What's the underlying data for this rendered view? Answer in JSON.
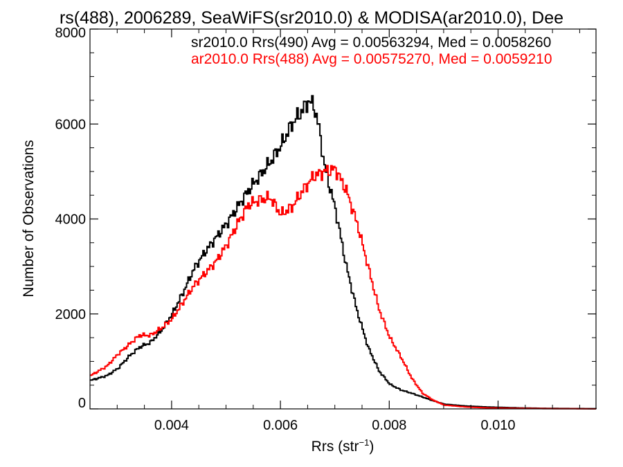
{
  "chart_data": {
    "type": "line",
    "title": "rs(488), 2006289, SeaWiFS(sr2010.0) & MODISA(ar2010.0), Dee",
    "xlabel": "Rrs (str",
    "xlabel_sup": "−1",
    "xlabel_end": ")",
    "ylabel": "Number of Observations",
    "xlim": [
      0.0025,
      0.0118
    ],
    "ylim": [
      0,
      8000
    ],
    "x_ticks": [
      0.004,
      0.006,
      0.008,
      0.01
    ],
    "x_tick_labels": [
      "0.004",
      "0.006",
      "0.008",
      "0.010"
    ],
    "y_ticks": [
      0,
      2000,
      4000,
      6000,
      8000
    ],
    "y_tick_labels": [
      "0",
      "2000",
      "4000",
      "6000",
      "8000"
    ],
    "legend_placement": "top-right",
    "grid": false,
    "series": [
      {
        "name": "sr2010.0 Rrs(490) Avg = 0.00563294, Med = 0.0058260",
        "color": "#000000",
        "points": [
          [
            0.0025,
            600
          ],
          [
            0.0028,
            700
          ],
          [
            0.003,
            850
          ],
          [
            0.0032,
            1100
          ],
          [
            0.0034,
            1300
          ],
          [
            0.0036,
            1400
          ],
          [
            0.0038,
            1650
          ],
          [
            0.004,
            2000
          ],
          [
            0.0042,
            2450
          ],
          [
            0.0044,
            2950
          ],
          [
            0.0046,
            3300
          ],
          [
            0.0048,
            3600
          ],
          [
            0.005,
            3900
          ],
          [
            0.0052,
            4250
          ],
          [
            0.0054,
            4600
          ],
          [
            0.0056,
            4900
          ],
          [
            0.0058,
            5200
          ],
          [
            0.006,
            5550
          ],
          [
            0.0062,
            6000
          ],
          [
            0.0064,
            6300
          ],
          [
            0.0065,
            6480
          ],
          [
            0.0066,
            6400
          ],
          [
            0.0067,
            5900
          ],
          [
            0.0068,
            5100
          ],
          [
            0.007,
            4200
          ],
          [
            0.0072,
            3000
          ],
          [
            0.0074,
            2050
          ],
          [
            0.0076,
            1300
          ],
          [
            0.0078,
            800
          ],
          [
            0.008,
            520
          ],
          [
            0.0082,
            400
          ],
          [
            0.0084,
            330
          ],
          [
            0.0086,
            250
          ],
          [
            0.0088,
            170
          ],
          [
            0.009,
            100
          ],
          [
            0.0094,
            60
          ],
          [
            0.0098,
            40
          ],
          [
            0.0104,
            20
          ],
          [
            0.011,
            10
          ],
          [
            0.0118,
            5
          ]
        ]
      },
      {
        "name": "ar2010.0 Rrs(488) Avg = 0.00575270, Med = 0.0059210",
        "color": "#ff0000",
        "points": [
          [
            0.0025,
            700
          ],
          [
            0.0028,
            900
          ],
          [
            0.003,
            1150
          ],
          [
            0.0032,
            1350
          ],
          [
            0.0034,
            1550
          ],
          [
            0.0036,
            1550
          ],
          [
            0.0038,
            1700
          ],
          [
            0.004,
            1900
          ],
          [
            0.0042,
            2250
          ],
          [
            0.0044,
            2600
          ],
          [
            0.0046,
            2850
          ],
          [
            0.0048,
            3100
          ],
          [
            0.005,
            3450
          ],
          [
            0.0052,
            3900
          ],
          [
            0.0054,
            4300
          ],
          [
            0.0056,
            4400
          ],
          [
            0.0058,
            4450
          ],
          [
            0.006,
            4100
          ],
          [
            0.0062,
            4250
          ],
          [
            0.0064,
            4600
          ],
          [
            0.0066,
            4900
          ],
          [
            0.0068,
            5000
          ],
          [
            0.007,
            5050
          ],
          [
            0.0072,
            4600
          ],
          [
            0.0074,
            3900
          ],
          [
            0.0076,
            3000
          ],
          [
            0.0078,
            2100
          ],
          [
            0.008,
            1500
          ],
          [
            0.0082,
            1100
          ],
          [
            0.0084,
            650
          ],
          [
            0.0086,
            330
          ],
          [
            0.0088,
            180
          ],
          [
            0.009,
            80
          ],
          [
            0.0094,
            40
          ],
          [
            0.0098,
            20
          ],
          [
            0.0104,
            10
          ],
          [
            0.011,
            5
          ],
          [
            0.0118,
            0
          ]
        ]
      }
    ]
  }
}
